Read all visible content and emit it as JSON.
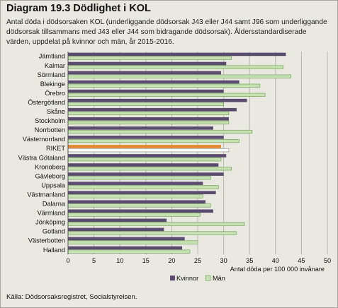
{
  "title": "Diagram 19.3 Dödlighet i KOL",
  "subtitle": "Antal döda i dödsorsaken KOL (underliggande dödsorsak J43 eller J44 samt J96 som underliggande dödsorsak tillsammans med J43 eller J44 som bidragande dödsorsak). Åldersstandardiserade värden, uppdelat på kvinnor och män, år 2015-2016.",
  "source": "Källa: Dödsorsaksregistret, Socialstyrelsen.",
  "colors": {
    "background": "#e9e9e1",
    "kvinnor": "#5a4c6c",
    "man": "#c6e0b4",
    "man_border": "#6a9a50",
    "riket_kvinnor": "#e38a2f",
    "riket_man": "#ffffff",
    "riket_man_border": "#8a8a8a"
  },
  "chart_data": {
    "type": "bar",
    "orientation": "horizontal",
    "categories": [
      "Jämtland",
      "Kalmar",
      "Sörmland",
      "Blekinge",
      "Örebro",
      "Östergötland",
      "Skåne",
      "Stockholm",
      "Norrbotten",
      "Västernorrland",
      "RIKET",
      "Västra Götaland",
      "Kronoberg",
      "Gävleborg",
      "Uppsala",
      "Västmanland",
      "Dalarna",
      "Värmland",
      "Jönköping",
      "Gotland",
      "Västerbotten",
      "Halland"
    ],
    "highlight_category": "RIKET",
    "series": [
      {
        "name": "Kvinnor",
        "values": [
          42,
          30.5,
          29.5,
          33,
          30,
          34.5,
          32.5,
          31,
          28,
          30,
          29.5,
          30.5,
          29,
          30,
          26,
          28.5,
          26.5,
          28,
          19,
          18.5,
          22.5,
          22
        ]
      },
      {
        "name": "Män",
        "values": [
          31.5,
          41.5,
          43,
          37,
          38,
          30,
          31,
          31,
          35.5,
          33,
          31,
          29.5,
          31.5,
          27.5,
          29,
          26,
          27.5,
          25.5,
          34,
          32.5,
          25,
          23.5
        ]
      }
    ],
    "xlabel": "Antal döda per 100 000 invånare",
    "ylabel": "",
    "xlim": [
      0,
      50
    ],
    "xticks": [
      0,
      5,
      10,
      15,
      20,
      25,
      30,
      35,
      40,
      45,
      50
    ],
    "grid": true,
    "legend": "bottom"
  }
}
